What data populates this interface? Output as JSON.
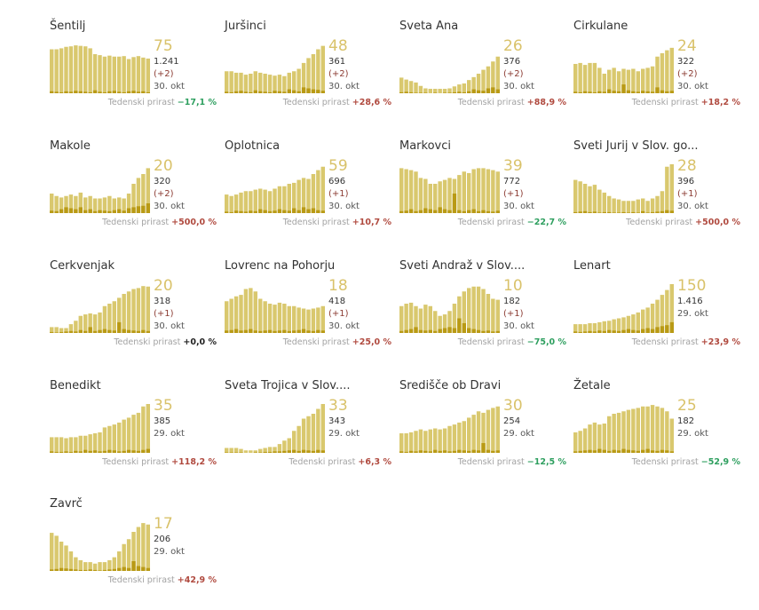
{
  "growth_label": "Tedenski prirast",
  "colors": {
    "bar": "#d9c86e",
    "dark": "#b99a15",
    "big": "#d9c26a",
    "pos": "#b04a3f",
    "neg": "#2e9f5f"
  },
  "chart_data": [
    {
      "type": "bar",
      "title": "Šentilj",
      "active": "75",
      "cumulative": "1.241",
      "delta": "(+2)",
      "date": "30. okt",
      "growth": "−17,1 %",
      "trend": "neg",
      "values": [
        90,
        90,
        92,
        95,
        96,
        98,
        97,
        96,
        92,
        80,
        78,
        75,
        77,
        75,
        75,
        76,
        70,
        74,
        76,
        73,
        71
      ],
      "new": [
        4,
        3,
        2,
        4,
        3,
        5,
        4,
        3,
        2,
        6,
        3,
        2,
        4,
        5,
        3,
        2,
        4,
        5,
        3,
        4,
        2
      ]
    },
    {
      "type": "bar",
      "title": "Juršinci",
      "active": "48",
      "cumulative": "361",
      "delta": "(+2)",
      "date": "30. okt",
      "growth": "+28,6 %",
      "trend": "pos",
      "values": [
        45,
        45,
        42,
        42,
        38,
        40,
        45,
        42,
        40,
        38,
        36,
        38,
        35,
        42,
        45,
        50,
        62,
        72,
        80,
        90,
        97
      ],
      "new": [
        3,
        2,
        4,
        5,
        3,
        2,
        6,
        4,
        3,
        2,
        5,
        4,
        3,
        8,
        6,
        4,
        12,
        10,
        8,
        7,
        5
      ]
    },
    {
      "type": "bar",
      "title": "Sveta Ana",
      "active": "26",
      "cumulative": "376",
      "delta": "(+2)",
      "date": "30. okt",
      "growth": "+88,9 %",
      "trend": "pos",
      "values": [
        32,
        28,
        25,
        22,
        15,
        10,
        9,
        9,
        9,
        9,
        10,
        14,
        18,
        20,
        27,
        33,
        40,
        48,
        55,
        65,
        75
      ],
      "new": [
        2,
        3,
        2,
        1,
        1,
        1,
        0,
        1,
        0,
        1,
        1,
        2,
        3,
        2,
        4,
        8,
        6,
        5,
        10,
        12,
        8
      ]
    },
    {
      "type": "bar",
      "title": "Cirkulane",
      "active": "24",
      "cumulative": "322",
      "delta": "(+2)",
      "date": "30. okt",
      "growth": "+18,2 %",
      "trend": "pos",
      "values": [
        60,
        62,
        58,
        62,
        62,
        52,
        40,
        48,
        52,
        45,
        50,
        48,
        50,
        45,
        50,
        52,
        55,
        75,
        82,
        88,
        93
      ],
      "new": [
        3,
        2,
        4,
        3,
        2,
        4,
        3,
        8,
        5,
        4,
        18,
        6,
        4,
        3,
        5,
        4,
        3,
        12,
        6,
        4,
        5
      ]
    },
    {
      "type": "bar",
      "title": "Makole",
      "active": "20",
      "cumulative": "320",
      "delta": "(+2)",
      "date": "30. okt",
      "growth": "+500,0 %",
      "trend": "pos",
      "values": [
        40,
        35,
        32,
        35,
        38,
        35,
        42,
        32,
        35,
        30,
        30,
        32,
        35,
        30,
        32,
        30,
        40,
        60,
        72,
        80,
        92
      ],
      "new": [
        5,
        4,
        8,
        12,
        10,
        8,
        12,
        6,
        8,
        4,
        6,
        5,
        4,
        6,
        8,
        5,
        10,
        12,
        14,
        15,
        20
      ]
    },
    {
      "type": "bar",
      "title": "Oplotnica",
      "active": "59",
      "cumulative": "696",
      "delta": "(+1)",
      "date": "30. okt",
      "growth": "+10,7 %",
      "trend": "pos",
      "values": [
        38,
        35,
        38,
        42,
        45,
        45,
        48,
        50,
        48,
        45,
        50,
        55,
        55,
        60,
        62,
        68,
        72,
        70,
        80,
        88,
        95
      ],
      "new": [
        3,
        2,
        5,
        4,
        3,
        5,
        4,
        8,
        6,
        4,
        5,
        8,
        6,
        5,
        10,
        6,
        12,
        8,
        10,
        6,
        5
      ]
    },
    {
      "type": "bar",
      "title": "Markovci",
      "active": "39",
      "cumulative": "772",
      "delta": "(+1)",
      "date": "30. okt",
      "growth": "−22,7 %",
      "trend": "neg",
      "values": [
        92,
        90,
        88,
        85,
        72,
        70,
        60,
        60,
        65,
        68,
        72,
        70,
        78,
        85,
        82,
        90,
        92,
        92,
        90,
        88,
        85
      ],
      "new": [
        4,
        5,
        8,
        4,
        6,
        10,
        8,
        6,
        12,
        8,
        6,
        40,
        6,
        4,
        6,
        8,
        4,
        6,
        4,
        3,
        5
      ]
    },
    {
      "type": "bar",
      "title": "Sveti Jurij v Slov. go...",
      "active": "28",
      "cumulative": "396",
      "delta": "(+1)",
      "date": "30. okt",
      "growth": "+500,0 %",
      "trend": "pos",
      "values": [
        68,
        65,
        60,
        55,
        58,
        48,
        42,
        35,
        30,
        28,
        25,
        25,
        25,
        28,
        30,
        25,
        30,
        35,
        45,
        95,
        100
      ],
      "new": [
        2,
        3,
        4,
        2,
        3,
        1,
        2,
        2,
        1,
        1,
        2,
        1,
        2,
        1,
        4,
        1,
        2,
        3,
        4,
        6,
        5
      ]
    },
    {
      "type": "bar",
      "title": "Cerkvenjak",
      "active": "20",
      "cumulative": "318",
      "delta": "(+1)",
      "date": "30. okt",
      "growth": "+0,0 %",
      "trend": "zero",
      "values": [
        12,
        12,
        10,
        10,
        18,
        25,
        35,
        38,
        40,
        38,
        42,
        55,
        60,
        65,
        72,
        80,
        85,
        90,
        92,
        96,
        95
      ],
      "new": [
        2,
        1,
        2,
        3,
        4,
        3,
        6,
        4,
        12,
        4,
        6,
        8,
        6,
        5,
        22,
        8,
        6,
        5,
        4,
        6,
        4
      ]
    },
    {
      "type": "bar",
      "title": "Lovrenc na Pohorju",
      "active": "18",
      "cumulative": "418",
      "delta": "(+1)",
      "date": "30. okt",
      "growth": "+25,0 %",
      "trend": "pos",
      "values": [
        65,
        70,
        75,
        78,
        90,
        92,
        85,
        70,
        65,
        60,
        58,
        62,
        60,
        55,
        55,
        52,
        50,
        48,
        50,
        52,
        55
      ],
      "new": [
        5,
        6,
        8,
        5,
        6,
        8,
        5,
        4,
        5,
        6,
        4,
        5,
        6,
        4,
        5,
        6,
        8,
        5,
        4,
        6,
        5
      ]
    },
    {
      "type": "bar",
      "title": "Sveti Andraž v Slov....",
      "active": "10",
      "cumulative": "182",
      "delta": "(+1)",
      "date": "30. okt",
      "growth": "−75,0 %",
      "trend": "neg",
      "values": [
        55,
        60,
        62,
        55,
        50,
        58,
        55,
        45,
        35,
        38,
        45,
        60,
        75,
        85,
        92,
        95,
        95,
        90,
        80,
        70,
        68
      ],
      "new": [
        4,
        6,
        8,
        12,
        6,
        5,
        6,
        4,
        8,
        10,
        12,
        10,
        30,
        20,
        10,
        8,
        6,
        4,
        5,
        3,
        4
      ]
    },
    {
      "type": "bar",
      "title": "Lenart",
      "active": "150",
      "cumulative": "1.416",
      "delta": "",
      "date": "29. okt",
      "growth": "+23,9 %",
      "trend": "pos",
      "values": [
        18,
        18,
        18,
        20,
        20,
        22,
        24,
        25,
        28,
        30,
        32,
        35,
        38,
        42,
        48,
        52,
        60,
        68,
        78,
        88,
        100
      ],
      "new": [
        3,
        2,
        3,
        4,
        3,
        5,
        4,
        6,
        5,
        4,
        6,
        8,
        6,
        5,
        8,
        10,
        8,
        12,
        14,
        16,
        22
      ]
    },
    {
      "type": "bar",
      "title": "Benedikt",
      "active": "35",
      "cumulative": "385",
      "delta": "",
      "date": "29. okt",
      "growth": "+118,2 %",
      "trend": "pos",
      "values": [
        32,
        32,
        32,
        30,
        32,
        32,
        35,
        35,
        38,
        40,
        42,
        52,
        55,
        58,
        62,
        68,
        72,
        78,
        82,
        95,
        100
      ],
      "new": [
        3,
        2,
        2,
        3,
        2,
        4,
        3,
        6,
        4,
        5,
        3,
        4,
        6,
        5,
        3,
        4,
        6,
        5,
        4,
        6,
        8
      ]
    },
    {
      "type": "bar",
      "title": "Sveta Trojica v Slov....",
      "active": "33",
      "cumulative": "343",
      "delta": "",
      "date": "29. okt",
      "growth": "+6,3 %",
      "trend": "pos",
      "values": [
        10,
        10,
        10,
        8,
        5,
        5,
        5,
        8,
        10,
        12,
        12,
        18,
        25,
        30,
        45,
        55,
        70,
        75,
        80,
        90,
        100
      ],
      "new": [
        1,
        1,
        1,
        1,
        0,
        0,
        1,
        1,
        2,
        2,
        3,
        3,
        4,
        5,
        6,
        4,
        6,
        5,
        4,
        6,
        5
      ]
    },
    {
      "type": "bar",
      "title": "Središče ob Dravi",
      "active": "30",
      "cumulative": "254",
      "delta": "",
      "date": "29. okt",
      "growth": "−12,5 %",
      "trend": "neg",
      "values": [
        40,
        40,
        42,
        45,
        48,
        45,
        48,
        50,
        48,
        50,
        55,
        58,
        62,
        65,
        72,
        78,
        85,
        82,
        88,
        92,
        95
      ],
      "new": [
        3,
        2,
        4,
        3,
        5,
        4,
        3,
        6,
        4,
        5,
        3,
        4,
        6,
        5,
        4,
        6,
        5,
        20,
        6,
        4,
        5
      ]
    },
    {
      "type": "bar",
      "title": "Žetale",
      "active": "25",
      "cumulative": "182",
      "delta": "",
      "date": "29. okt",
      "growth": "−52,9 %",
      "trend": "neg",
      "values": [
        42,
        45,
        50,
        58,
        62,
        58,
        60,
        75,
        80,
        82,
        85,
        88,
        90,
        92,
        95,
        95,
        98,
        95,
        92,
        85,
        70
      ],
      "new": [
        3,
        4,
        5,
        6,
        5,
        8,
        6,
        4,
        6,
        5,
        8,
        6,
        5,
        4,
        6,
        8,
        5,
        4,
        6,
        5,
        3
      ]
    },
    {
      "type": "bar",
      "title": "Zavrč",
      "active": "17",
      "cumulative": "206",
      "delta": "",
      "date": "29. okt",
      "growth": "+42,9 %",
      "trend": "pos",
      "values": [
        78,
        72,
        60,
        52,
        40,
        28,
        22,
        18,
        18,
        15,
        18,
        18,
        22,
        28,
        40,
        55,
        65,
        80,
        90,
        98,
        95
      ],
      "new": [
        3,
        4,
        6,
        5,
        4,
        3,
        2,
        2,
        3,
        2,
        1,
        2,
        3,
        4,
        6,
        8,
        6,
        20,
        10,
        8,
        6
      ]
    }
  ]
}
